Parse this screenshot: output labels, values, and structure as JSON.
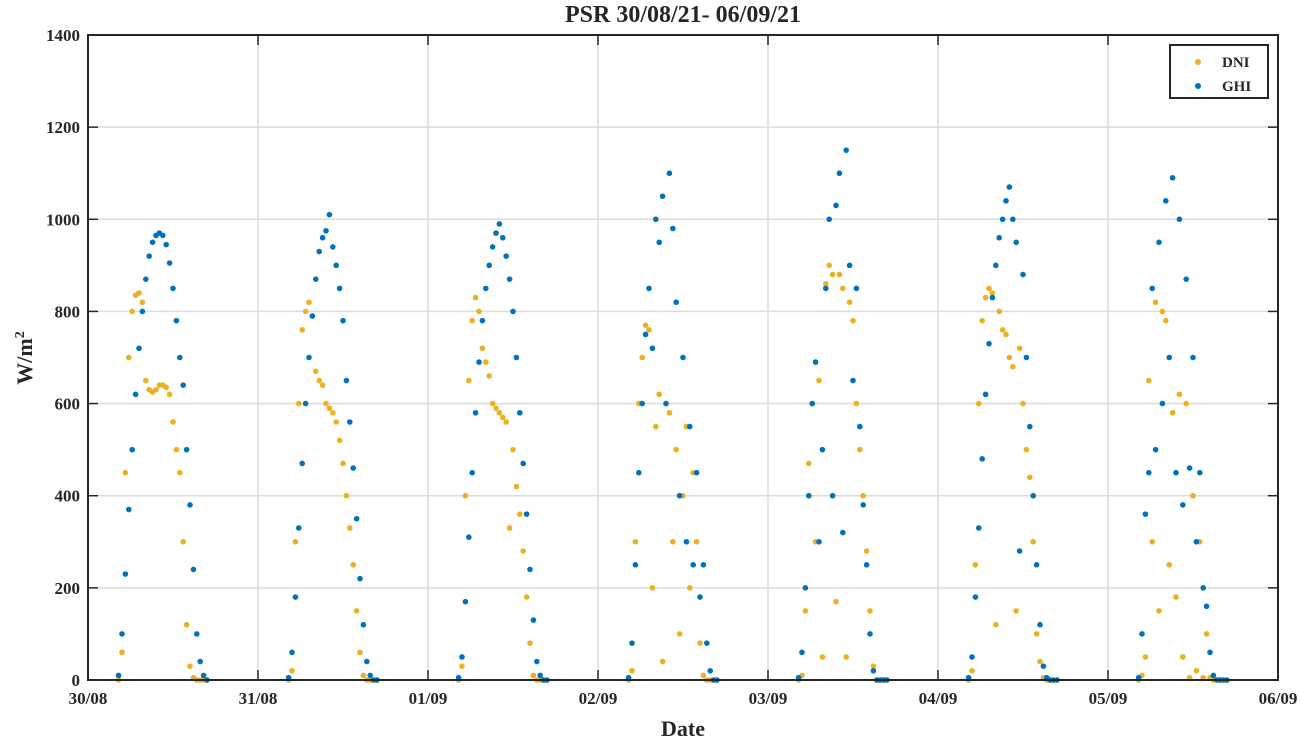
{
  "chart_data": {
    "type": "scatter",
    "title": "PSR 30/08/21- 06/09/21",
    "xlabel": "Date",
    "ylabel": "W/m",
    "ylabel_sup": "2",
    "xlim": [
      0,
      7
    ],
    "ylim": [
      0,
      1400
    ],
    "yticks": [
      0,
      200,
      400,
      600,
      800,
      1000,
      1200,
      1400
    ],
    "xtick_labels": [
      "30/08",
      "31/08",
      "01/09",
      "02/09",
      "03/09",
      "04/09",
      "05/09",
      "06/09"
    ],
    "grid": true,
    "legend_position": "top-right",
    "x_units": "days since 30/08",
    "sample_start_fraction": 0.18,
    "sample_step_fraction": 0.02,
    "series": [
      {
        "name": "DNI",
        "color": "#EDB120"
      },
      {
        "name": "GHI",
        "color": "#0072BD"
      }
    ],
    "days": [
      {
        "GHI": [
          10,
          100,
          230,
          370,
          500,
          620,
          720,
          800,
          870,
          920,
          950,
          965,
          970,
          965,
          945,
          905,
          850,
          780,
          700,
          640,
          500,
          380,
          240,
          100,
          40,
          10,
          0
        ],
        "DNI": [
          0,
          60,
          450,
          700,
          800,
          835,
          840,
          820,
          650,
          630,
          625,
          630,
          640,
          640,
          635,
          620,
          560,
          500,
          450,
          300,
          120,
          30,
          5,
          0,
          0,
          0,
          0
        ]
      },
      {
        "GHI": [
          5,
          60,
          180,
          330,
          470,
          600,
          700,
          790,
          870,
          930,
          960,
          975,
          1010,
          940,
          900,
          850,
          780,
          650,
          560,
          460,
          350,
          220,
          120,
          40,
          10,
          0,
          0
        ],
        "DNI": [
          0,
          20,
          300,
          600,
          760,
          800,
          820,
          790,
          670,
          650,
          640,
          600,
          590,
          580,
          560,
          520,
          470,
          400,
          330,
          250,
          150,
          60,
          10,
          0,
          0,
          0,
          0
        ]
      },
      {
        "GHI": [
          5,
          50,
          170,
          310,
          450,
          580,
          690,
          780,
          850,
          900,
          940,
          970,
          990,
          960,
          920,
          870,
          800,
          700,
          580,
          470,
          360,
          240,
          130,
          40,
          10,
          0,
          0
        ],
        "DNI": [
          0,
          30,
          400,
          650,
          780,
          830,
          800,
          720,
          690,
          660,
          600,
          590,
          580,
          570,
          560,
          330,
          500,
          420,
          360,
          280,
          180,
          80,
          10,
          0,
          0,
          0,
          0
        ]
      },
      {
        "GHI": [
          5,
          80,
          250,
          450,
          600,
          750,
          850,
          720,
          1000,
          950,
          1050,
          600,
          1100,
          980,
          820,
          400,
          700,
          300,
          550,
          250,
          450,
          180,
          250,
          80,
          20,
          0,
          0
        ],
        "DNI": [
          0,
          20,
          300,
          600,
          700,
          770,
          760,
          200,
          550,
          620,
          40,
          600,
          580,
          300,
          500,
          100,
          400,
          550,
          200,
          450,
          300,
          80,
          10,
          0,
          0,
          0,
          0
        ]
      },
      {
        "GHI": [
          5,
          60,
          200,
          400,
          600,
          690,
          300,
          500,
          850,
          1000,
          400,
          1030,
          1100,
          320,
          1150,
          900,
          650,
          850,
          550,
          380,
          250,
          100,
          20,
          0,
          0,
          0,
          0
        ],
        "DNI": [
          0,
          10,
          150,
          470,
          600,
          300,
          650,
          50,
          860,
          900,
          880,
          170,
          880,
          850,
          50,
          820,
          780,
          600,
          500,
          400,
          280,
          150,
          30,
          0,
          0,
          0,
          0
        ]
      },
      {
        "GHI": [
          5,
          50,
          180,
          330,
          480,
          620,
          730,
          830,
          900,
          960,
          1000,
          1040,
          1070,
          1000,
          950,
          280,
          880,
          700,
          550,
          400,
          250,
          120,
          30,
          5,
          0,
          0,
          0
        ],
        "DNI": [
          0,
          20,
          250,
          600,
          780,
          830,
          850,
          840,
          120,
          800,
          760,
          750,
          700,
          680,
          150,
          720,
          600,
          500,
          440,
          300,
          100,
          40,
          5,
          0,
          0,
          0,
          0
        ]
      },
      {
        "GHI": [
          5,
          100,
          360,
          450,
          850,
          500,
          950,
          600,
          1040,
          700,
          1090,
          450,
          1000,
          380,
          870,
          460,
          700,
          300,
          450,
          200,
          160,
          60,
          10,
          0,
          0,
          0,
          0
        ],
        "DNI": [
          0,
          10,
          50,
          650,
          300,
          820,
          150,
          800,
          780,
          250,
          580,
          180,
          620,
          50,
          600,
          5,
          400,
          20,
          300,
          5,
          100,
          5,
          0,
          0,
          0,
          0,
          0
        ]
      }
    ]
  }
}
